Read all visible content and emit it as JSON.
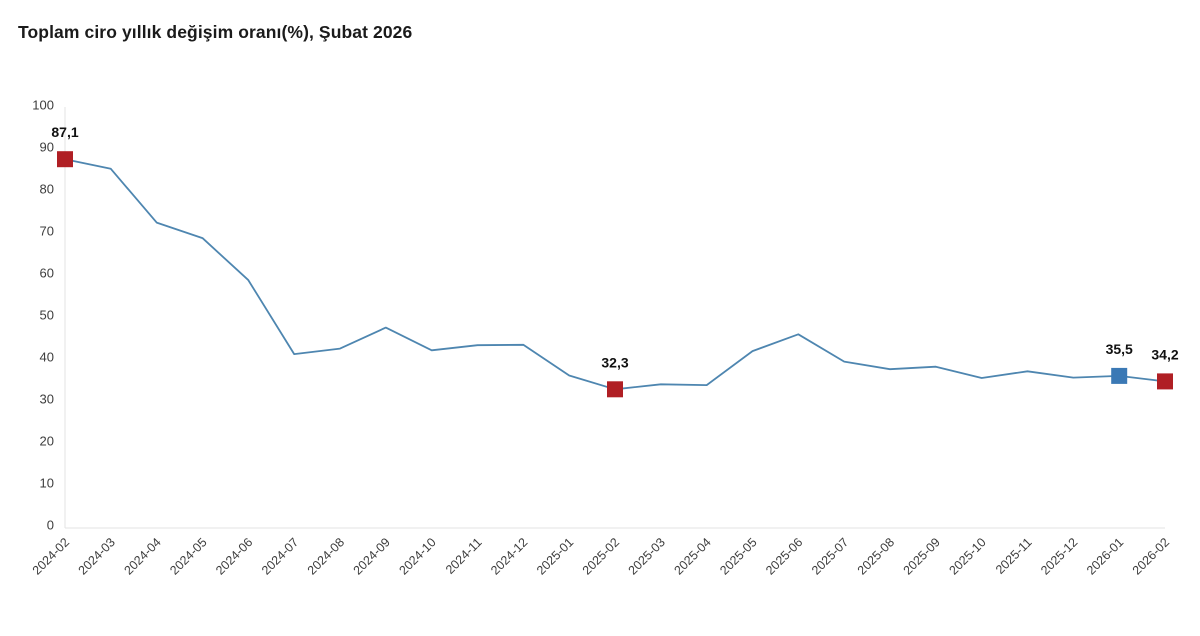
{
  "page": {
    "background_color": "#ffffff"
  },
  "chart_data": {
    "type": "line",
    "title": "Toplam ciro yıllık değişim oranı(%), Şubat 2026",
    "categories": [
      "2024-02",
      "2024-03",
      "2024-04",
      "2024-05",
      "2024-06",
      "2024-07",
      "2024-08",
      "2024-09",
      "2024-10",
      "2024-11",
      "2024-12",
      "2025-01",
      "2025-02",
      "2025-03",
      "2025-04",
      "2025-05",
      "2025-06",
      "2025-07",
      "2025-08",
      "2025-09",
      "2025-10",
      "2025-11",
      "2025-12",
      "2026-01",
      "2026-02"
    ],
    "values": [
      87.1,
      84.8,
      72.0,
      68.3,
      58.3,
      40.7,
      42.0,
      47.0,
      41.6,
      42.8,
      42.9,
      35.6,
      32.3,
      33.5,
      33.3,
      41.4,
      45.4,
      38.9,
      37.1,
      37.7,
      35.0,
      36.6,
      35.1,
      35.5,
      34.2
    ],
    "ylim": [
      0,
      100
    ],
    "yticks": [
      0,
      10,
      20,
      30,
      40,
      50,
      60,
      70,
      80,
      90,
      100
    ],
    "xlabel": "",
    "ylabel": "",
    "grid": "off",
    "legend": "none",
    "x_label_rotation": -45,
    "line_color": "#4e86b0",
    "axis_line_color": "#e3e3e3",
    "tick_label_color": "#3d3d3d",
    "data_label_color": "#111111",
    "marked_points": [
      {
        "category": "2024-02",
        "value": 87.1,
        "label": "87,1",
        "color": "#b01f24"
      },
      {
        "category": "2025-02",
        "value": 32.3,
        "label": "32,3",
        "color": "#b01f24"
      },
      {
        "category": "2026-01",
        "value": 35.5,
        "label": "35,5",
        "color": "#3b79b5"
      },
      {
        "category": "2026-02",
        "value": 34.2,
        "label": "34,2",
        "color": "#b01f24"
      }
    ]
  }
}
